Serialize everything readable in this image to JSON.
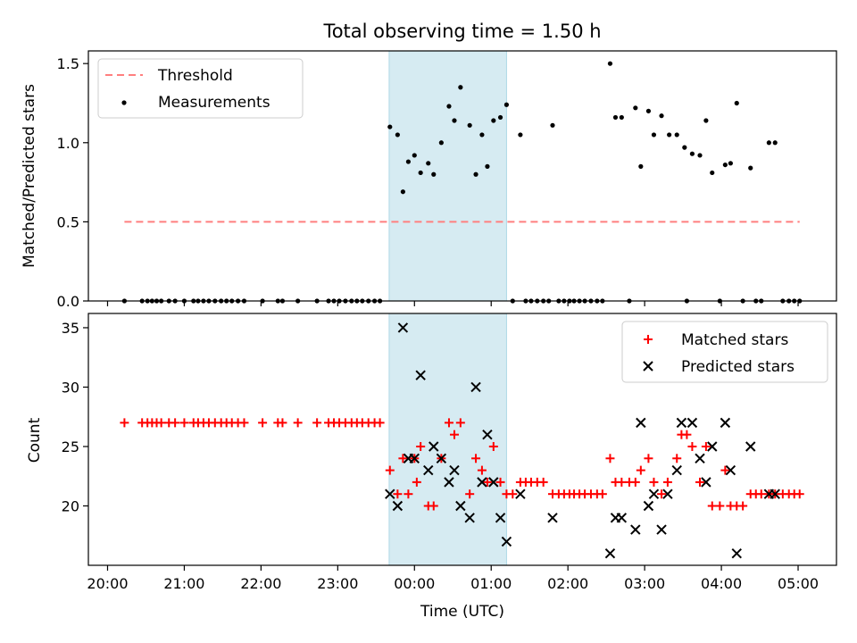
{
  "figure": {
    "title": "Total observing time = 1.50 h",
    "xlabel": "Time (UTC)",
    "x_ticks": [
      "20:00",
      "21:00",
      "22:00",
      "23:00",
      "00:00",
      "01:00",
      "02:00",
      "03:00",
      "04:00",
      "05:00"
    ],
    "x_tick_hours": [
      20,
      21,
      22,
      23,
      24,
      25,
      26,
      27,
      28,
      29
    ],
    "x_range_hours": [
      19.75,
      29.5
    ],
    "shaded_span_hours": [
      23.67,
      25.2
    ],
    "shade_color": "#add8e6"
  },
  "chart_data": [
    {
      "type": "scatter",
      "ylabel": "Matched/Predicted stars",
      "ylim": [
        0,
        1.58
      ],
      "y_ticks": [
        0.0,
        0.5,
        1.0,
        1.5
      ],
      "y_tick_labels": [
        "0.0",
        "0.5",
        "1.0",
        "1.5"
      ],
      "legend_position": "top-left",
      "threshold": {
        "name": "Threshold",
        "y": 0.5,
        "x_range_hours": [
          20.22,
          29.02
        ],
        "color": "#ff7f7f"
      },
      "series": [
        {
          "name": "Measurements",
          "color": "#000000",
          "points": [
            [
              20.22,
              0
            ],
            [
              20.45,
              0
            ],
            [
              20.52,
              0
            ],
            [
              20.58,
              0
            ],
            [
              20.64,
              0
            ],
            [
              20.7,
              0
            ],
            [
              20.8,
              0
            ],
            [
              20.88,
              0
            ],
            [
              21.0,
              0
            ],
            [
              21.12,
              0
            ],
            [
              21.18,
              0
            ],
            [
              21.25,
              0
            ],
            [
              21.32,
              0
            ],
            [
              21.4,
              0
            ],
            [
              21.48,
              0
            ],
            [
              21.55,
              0
            ],
            [
              21.62,
              0
            ],
            [
              21.7,
              0
            ],
            [
              21.78,
              0
            ],
            [
              22.02,
              0
            ],
            [
              22.22,
              0
            ],
            [
              22.28,
              0
            ],
            [
              22.48,
              0
            ],
            [
              22.73,
              0
            ],
            [
              22.88,
              0
            ],
            [
              22.95,
              0
            ],
            [
              23.02,
              0
            ],
            [
              23.1,
              0
            ],
            [
              23.18,
              0
            ],
            [
              23.25,
              0
            ],
            [
              23.32,
              0
            ],
            [
              23.4,
              0
            ],
            [
              23.48,
              0
            ],
            [
              23.55,
              0
            ],
            [
              23.68,
              1.1
            ],
            [
              23.78,
              1.05
            ],
            [
              23.85,
              0.69
            ],
            [
              23.92,
              0.88
            ],
            [
              24.0,
              0.92
            ],
            [
              24.08,
              0.81
            ],
            [
              24.18,
              0.87
            ],
            [
              24.25,
              0.8
            ],
            [
              24.35,
              1.0
            ],
            [
              24.45,
              1.23
            ],
            [
              24.52,
              1.14
            ],
            [
              24.6,
              1.35
            ],
            [
              24.72,
              1.11
            ],
            [
              24.8,
              0.8
            ],
            [
              24.88,
              1.05
            ],
            [
              24.95,
              0.85
            ],
            [
              25.03,
              1.14
            ],
            [
              25.12,
              1.16
            ],
            [
              25.2,
              1.24
            ],
            [
              25.28,
              0
            ],
            [
              25.38,
              1.05
            ],
            [
              25.45,
              0
            ],
            [
              25.52,
              0
            ],
            [
              25.6,
              0
            ],
            [
              25.68,
              0
            ],
            [
              25.75,
              0
            ],
            [
              25.8,
              1.11
            ],
            [
              25.88,
              0
            ],
            [
              25.95,
              0
            ],
            [
              26.02,
              0
            ],
            [
              26.08,
              0
            ],
            [
              26.15,
              0
            ],
            [
              26.22,
              0
            ],
            [
              26.3,
              0
            ],
            [
              26.38,
              0
            ],
            [
              26.45,
              0
            ],
            [
              26.55,
              1.5
            ],
            [
              26.62,
              1.16
            ],
            [
              26.7,
              1.16
            ],
            [
              26.8,
              0
            ],
            [
              26.88,
              1.22
            ],
            [
              26.95,
              0.85
            ],
            [
              27.05,
              1.2
            ],
            [
              27.12,
              1.05
            ],
            [
              27.22,
              1.17
            ],
            [
              27.32,
              1.05
            ],
            [
              27.42,
              1.05
            ],
            [
              27.52,
              0.97
            ],
            [
              27.55,
              0
            ],
            [
              27.62,
              0.93
            ],
            [
              27.72,
              0.92
            ],
            [
              27.8,
              1.14
            ],
            [
              27.88,
              0.81
            ],
            [
              27.98,
              0
            ],
            [
              28.05,
              0.86
            ],
            [
              28.12,
              0.87
            ],
            [
              28.2,
              1.25
            ],
            [
              28.28,
              0
            ],
            [
              28.38,
              0.84
            ],
            [
              28.45,
              0
            ],
            [
              28.52,
              0
            ],
            [
              28.62,
              1.0
            ],
            [
              28.7,
              1.0
            ],
            [
              28.8,
              0
            ],
            [
              28.88,
              0
            ],
            [
              28.95,
              0
            ],
            [
              29.02,
              0
            ]
          ]
        }
      ]
    },
    {
      "type": "scatter",
      "ylabel": "Count",
      "ylim": [
        15,
        36.2
      ],
      "y_ticks": [
        20,
        25,
        30,
        35
      ],
      "y_tick_labels": [
        "20",
        "25",
        "30",
        "35"
      ],
      "legend_position": "top-right",
      "series": [
        {
          "name": "Matched stars",
          "marker": "plus",
          "color": "#ff0000",
          "points": [
            [
              20.22,
              27
            ],
            [
              20.45,
              27
            ],
            [
              20.52,
              27
            ],
            [
              20.58,
              27
            ],
            [
              20.64,
              27
            ],
            [
              20.7,
              27
            ],
            [
              20.8,
              27
            ],
            [
              20.88,
              27
            ],
            [
              21.0,
              27
            ],
            [
              21.12,
              27
            ],
            [
              21.18,
              27
            ],
            [
              21.25,
              27
            ],
            [
              21.32,
              27
            ],
            [
              21.4,
              27
            ],
            [
              21.48,
              27
            ],
            [
              21.55,
              27
            ],
            [
              21.62,
              27
            ],
            [
              21.7,
              27
            ],
            [
              21.78,
              27
            ],
            [
              22.02,
              27
            ],
            [
              22.22,
              27
            ],
            [
              22.28,
              27
            ],
            [
              22.48,
              27
            ],
            [
              22.73,
              27
            ],
            [
              22.88,
              27
            ],
            [
              22.95,
              27
            ],
            [
              23.02,
              27
            ],
            [
              23.1,
              27
            ],
            [
              23.18,
              27
            ],
            [
              23.25,
              27
            ],
            [
              23.32,
              27
            ],
            [
              23.4,
              27
            ],
            [
              23.48,
              27
            ],
            [
              23.55,
              27
            ],
            [
              23.68,
              23
            ],
            [
              23.78,
              21
            ],
            [
              23.85,
              24
            ],
            [
              23.92,
              21
            ],
            [
              24.0,
              24
            ],
            [
              24.03,
              22
            ],
            [
              24.08,
              25
            ],
            [
              24.18,
              20
            ],
            [
              24.25,
              20
            ],
            [
              24.35,
              24
            ],
            [
              24.45,
              27
            ],
            [
              24.52,
              26
            ],
            [
              24.6,
              27
            ],
            [
              24.72,
              21
            ],
            [
              24.8,
              24
            ],
            [
              24.88,
              23
            ],
            [
              24.95,
              22
            ],
            [
              25.03,
              25
            ],
            [
              25.12,
              22
            ],
            [
              25.2,
              21
            ],
            [
              25.28,
              21
            ],
            [
              25.38,
              22
            ],
            [
              25.45,
              22
            ],
            [
              25.52,
              22
            ],
            [
              25.6,
              22
            ],
            [
              25.68,
              22
            ],
            [
              25.8,
              21
            ],
            [
              25.88,
              21
            ],
            [
              25.95,
              21
            ],
            [
              26.02,
              21
            ],
            [
              26.08,
              21
            ],
            [
              26.15,
              21
            ],
            [
              26.22,
              21
            ],
            [
              26.3,
              21
            ],
            [
              26.38,
              21
            ],
            [
              26.45,
              21
            ],
            [
              26.55,
              24
            ],
            [
              26.62,
              22
            ],
            [
              26.7,
              22
            ],
            [
              26.8,
              22
            ],
            [
              26.88,
              22
            ],
            [
              26.95,
              23
            ],
            [
              27.05,
              24
            ],
            [
              27.12,
              22
            ],
            [
              27.22,
              21
            ],
            [
              27.3,
              22
            ],
            [
              27.42,
              24
            ],
            [
              27.48,
              26
            ],
            [
              27.55,
              26
            ],
            [
              27.62,
              25
            ],
            [
              27.72,
              22
            ],
            [
              27.8,
              25
            ],
            [
              27.88,
              20
            ],
            [
              27.98,
              20
            ],
            [
              28.05,
              23
            ],
            [
              28.12,
              20
            ],
            [
              28.2,
              20
            ],
            [
              28.28,
              20
            ],
            [
              28.38,
              21
            ],
            [
              28.45,
              21
            ],
            [
              28.52,
              21
            ],
            [
              28.62,
              21
            ],
            [
              28.7,
              21
            ],
            [
              28.8,
              21
            ],
            [
              28.88,
              21
            ],
            [
              28.95,
              21
            ],
            [
              29.02,
              21
            ]
          ]
        },
        {
          "name": "Predicted stars",
          "marker": "x",
          "color": "#000000",
          "points": [
            [
              23.68,
              21
            ],
            [
              23.78,
              20
            ],
            [
              23.85,
              35
            ],
            [
              23.92,
              24
            ],
            [
              24.0,
              24
            ],
            [
              24.08,
              31
            ],
            [
              24.18,
              23
            ],
            [
              24.25,
              25
            ],
            [
              24.35,
              24
            ],
            [
              24.45,
              22
            ],
            [
              24.52,
              23
            ],
            [
              24.6,
              20
            ],
            [
              24.72,
              19
            ],
            [
              24.8,
              30
            ],
            [
              24.88,
              22
            ],
            [
              24.95,
              26
            ],
            [
              25.03,
              22
            ],
            [
              25.12,
              19
            ],
            [
              25.2,
              17
            ],
            [
              25.38,
              21
            ],
            [
              25.8,
              19
            ],
            [
              26.55,
              16
            ],
            [
              26.62,
              19
            ],
            [
              26.7,
              19
            ],
            [
              26.88,
              18
            ],
            [
              26.95,
              27
            ],
            [
              27.05,
              20
            ],
            [
              27.12,
              21
            ],
            [
              27.22,
              18
            ],
            [
              27.3,
              21
            ],
            [
              27.42,
              23
            ],
            [
              27.48,
              27
            ],
            [
              27.62,
              27
            ],
            [
              27.72,
              24
            ],
            [
              27.8,
              22
            ],
            [
              27.88,
              25
            ],
            [
              28.05,
              27
            ],
            [
              28.12,
              23
            ],
            [
              28.2,
              16
            ],
            [
              28.38,
              25
            ],
            [
              28.62,
              21
            ],
            [
              28.7,
              21
            ]
          ]
        }
      ]
    }
  ]
}
